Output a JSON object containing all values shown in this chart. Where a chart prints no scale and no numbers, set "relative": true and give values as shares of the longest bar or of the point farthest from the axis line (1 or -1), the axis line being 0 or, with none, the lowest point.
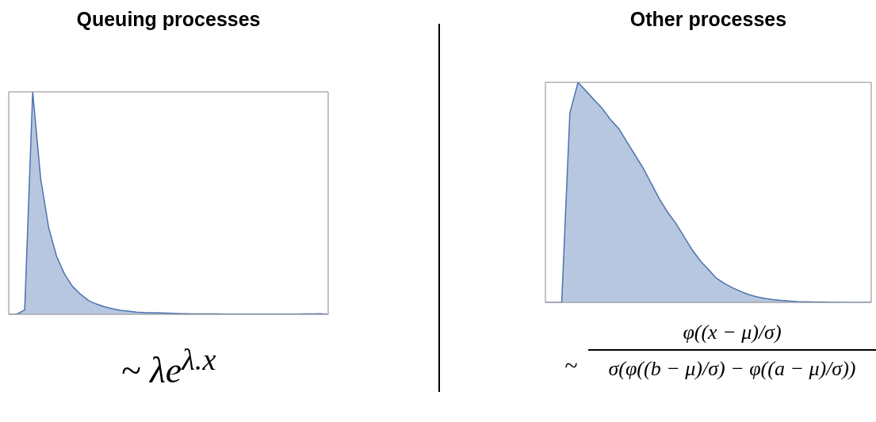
{
  "chart_data": [
    {
      "type": "area",
      "title": "Queuing processes",
      "relative": true,
      "categories": [
        null,
        null,
        null,
        null,
        null,
        null,
        null,
        null,
        null,
        null,
        null,
        null,
        null,
        null,
        null,
        null,
        null,
        null,
        null,
        null,
        null,
        null,
        null,
        null,
        null,
        null,
        null,
        null,
        null,
        null,
        null,
        null,
        null,
        null,
        null,
        null,
        null,
        null,
        null,
        null,
        null
      ],
      "series": [
        {
          "color": "#4c72b0",
          "values": [
            0,
            0,
            0.02,
            1,
            0.61,
            0.39,
            0.26,
            0.18,
            0.125,
            0.09,
            0.062,
            0.046,
            0.034,
            0.025,
            0.018,
            0.014,
            0.01,
            0.008,
            0.007,
            0.006,
            0.005,
            0.004,
            0.003,
            0.002,
            0.002,
            0.002,
            0.002,
            0.001,
            0.001,
            0.001,
            0.001,
            0.001,
            0.001,
            0.001,
            0.001,
            0.001,
            0.001,
            0.002,
            0.002,
            0.003,
            0
          ]
        }
      ],
      "annotations": [
        "~ λe$^{λ.x}$"
      ]
    },
    {
      "type": "area",
      "title": "Other processes",
      "relative": true,
      "categories": [
        null,
        null,
        null,
        null,
        null,
        null,
        null,
        null,
        null,
        null,
        null,
        null,
        null,
        null,
        null,
        null,
        null,
        null,
        null,
        null,
        null,
        null,
        null,
        null,
        null,
        null,
        null,
        null,
        null,
        null,
        null,
        null,
        null,
        null,
        null,
        null,
        null,
        null,
        null,
        null,
        null
      ],
      "series": [
        {
          "color": "#4c72b0",
          "values": [
            0,
            0,
            0,
            0.86,
            1,
            0.96,
            0.92,
            0.88,
            0.83,
            0.79,
            0.73,
            0.67,
            0.61,
            0.54,
            0.47,
            0.41,
            0.36,
            0.3,
            0.24,
            0.19,
            0.15,
            0.11,
            0.086,
            0.066,
            0.05,
            0.035,
            0.025,
            0.018,
            0.013,
            0.009,
            0.006,
            0.004,
            0.003,
            0.002,
            0.002,
            0.001,
            0.001,
            0,
            0,
            0,
            0
          ]
        }
      ],
      "annotations": [
        "~",
        "φ((x − μ)/σ)",
        "σ(φ((b − μ)/σ) − φ((a − μ)/σ))"
      ]
    }
  ]
}
